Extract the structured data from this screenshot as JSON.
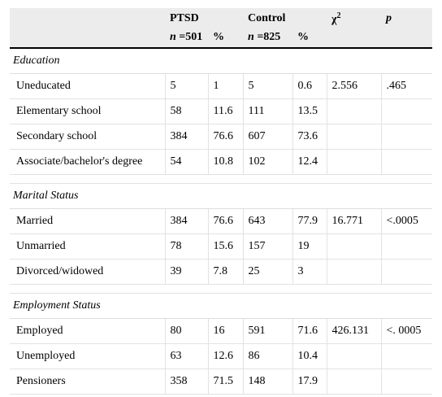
{
  "header": {
    "groups": [
      "PTSD",
      "Control",
      "χ",
      "p"
    ],
    "chi_sup": "2",
    "subheads": [
      {
        "italic": "n",
        "rest": " =501"
      },
      "%",
      {
        "italic": "n",
        "rest": " =825"
      },
      "%"
    ]
  },
  "sections": [
    {
      "title": "Education",
      "rows": [
        {
          "label": "Uneducated",
          "cells": [
            "5",
            "1",
            "5",
            "0.6",
            "2.556",
            ".465"
          ]
        },
        {
          "label": "Elementary school",
          "cells": [
            "58",
            "11.6",
            "111",
            "13.5",
            null,
            null
          ]
        },
        {
          "label": "Secondary school",
          "cells": [
            "384",
            "76.6",
            "607",
            "73.6",
            null,
            null
          ]
        },
        {
          "label": "Associate/bachelor's degree",
          "cells": [
            "54",
            "10.8",
            "102",
            "12.4",
            null,
            null
          ]
        }
      ]
    },
    {
      "title": "Marital Status",
      "rows": [
        {
          "label": "Married",
          "cells": [
            "384",
            "76.6",
            "643",
            "77.9",
            "16.771",
            "<.0005"
          ]
        },
        {
          "label": "Unmarried",
          "cells": [
            "78",
            "15.6",
            "157",
            "19",
            null,
            null
          ]
        },
        {
          "label": "Divorced/widowed",
          "cells": [
            "39",
            "7.8",
            "25",
            "3",
            null,
            null
          ]
        }
      ]
    },
    {
      "title": "Employment Status",
      "rows": [
        {
          "label": "Employed",
          "cells": [
            "80",
            "16",
            "591",
            "71.6",
            "426.131",
            "<. 0005"
          ]
        },
        {
          "label": "Unemployed",
          "cells": [
            "63",
            "12.6",
            "86",
            "10.4",
            null,
            null
          ]
        },
        {
          "label": "Pensioners",
          "cells": [
            "358",
            "71.5",
            "148",
            "17.9",
            null,
            null
          ]
        }
      ]
    }
  ]
}
